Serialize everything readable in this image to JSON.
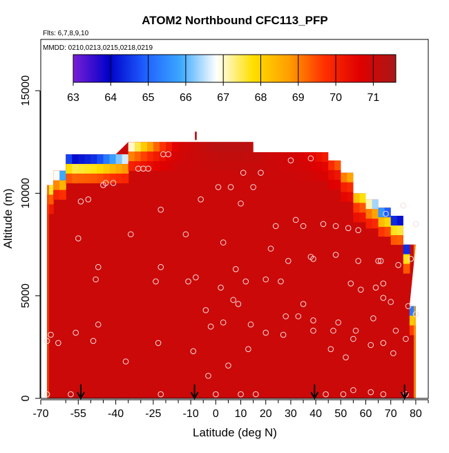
{
  "chart_data": {
    "type": "heatmap",
    "title": "ATOM2 Northbound CFC113_PFP",
    "subtitle_flights": "Flts: 6,7,8,9,10",
    "subtitle_dates": "MMDD: 0210,0213,0215,0218,0219",
    "xlabel": "Latitude (deg N)",
    "ylabel": "Altitude (m)",
    "xlim": [
      -70,
      85
    ],
    "ylim": [
      0,
      17500
    ],
    "x_ticks": [
      -70,
      -55,
      -40,
      -25,
      -10,
      0,
      10,
      20,
      30,
      40,
      50,
      60,
      70,
      80
    ],
    "x_tick_labels": [
      "-70",
      "-55",
      "-40",
      "-25",
      "-10",
      "0",
      "10",
      "20",
      "30",
      "40",
      "50",
      "60",
      "70",
      "80"
    ],
    "x_minor_ticks": [
      -60,
      -50,
      -45,
      -35,
      -30,
      -20,
      -15,
      -5,
      5,
      15,
      25,
      35,
      45,
      55,
      65,
      75,
      85
    ],
    "y_ticks": [
      0,
      5000,
      10000,
      15000
    ],
    "y_tick_labels": [
      "0",
      "5000",
      "10000",
      "15000"
    ],
    "colorbar": {
      "range": [
        63,
        71.6
      ],
      "ticks": [
        63,
        64,
        65,
        66,
        67,
        68,
        69,
        70,
        71
      ],
      "tick_labels": [
        "63",
        "64",
        "65",
        "66",
        "67",
        "68",
        "69",
        "70",
        "71"
      ],
      "colors": [
        "#7a1fd6",
        "#0000c8",
        "#1e5fff",
        "#3ca8ff",
        "#ffffff",
        "#ffe000",
        "#ffa000",
        "#ff3000",
        "#e00000",
        "#a81818"
      ]
    },
    "curtain_top": [
      {
        "x": -67.5,
        "y": 10400
      },
      {
        "x": -62.5,
        "y": 11100
      },
      {
        "x": -57.5,
        "y": 11900
      },
      {
        "x": -42.5,
        "y": 11900
      },
      {
        "x": -32.5,
        "y": 12500
      },
      {
        "x": 12.5,
        "y": 12500
      },
      {
        "x": 17.5,
        "y": 12000
      },
      {
        "x": 42.5,
        "y": 12000
      },
      {
        "x": 47.5,
        "y": 11600
      },
      {
        "x": 52.5,
        "y": 11000
      },
      {
        "x": 57.5,
        "y": 10000
      },
      {
        "x": 62.5,
        "y": 9700
      },
      {
        "x": 67.5,
        "y": 9300
      },
      {
        "x": 72.5,
        "y": 8900
      },
      {
        "x": 77.5,
        "y": 7500
      },
      {
        "x": 80.0,
        "y": 4500
      }
    ],
    "curtain_bottom": 0,
    "curtain_left_latitude": -67.5,
    "curtain_base_value": 71.0,
    "top_edge_values": [
      {
        "x": -67.5,
        "value": 68.0
      },
      {
        "x": -62.5,
        "value": 66.5
      },
      {
        "x": -57.5,
        "value": 64.0
      },
      {
        "x": -47.5,
        "value": 64.5
      },
      {
        "x": -40.0,
        "value": 66.0
      },
      {
        "x": -32.5,
        "value": 67.2
      },
      {
        "x": -25.0,
        "value": 69.0
      },
      {
        "x": -15.0,
        "value": 70.8
      },
      {
        "x": 0.0,
        "value": 71.3
      },
      {
        "x": 12.5,
        "value": 71.3
      },
      {
        "x": 20.0,
        "value": 71.0
      },
      {
        "x": 35.0,
        "value": 70.8
      },
      {
        "x": 45.0,
        "value": 70.0
      },
      {
        "x": 50.0,
        "value": 69.2
      },
      {
        "x": 55.0,
        "value": 68.5
      },
      {
        "x": 60.0,
        "value": 67.5
      },
      {
        "x": 65.0,
        "value": 66.0
      },
      {
        "x": 70.0,
        "value": 64.5
      },
      {
        "x": 75.0,
        "value": 64.0
      },
      {
        "x": 79.5,
        "value": 65.5
      }
    ],
    "left_edge_value": 69.5,
    "right_edge_value": 68.5,
    "samples": [
      {
        "x": -67.5,
        "y": 200
      },
      {
        "x": -67.5,
        "y": 2800
      },
      {
        "x": -66,
        "y": 3100
      },
      {
        "x": -63,
        "y": 2700
      },
      {
        "x": -58,
        "y": 200
      },
      {
        "x": -56,
        "y": 3200
      },
      {
        "x": -55,
        "y": 7800
      },
      {
        "x": -54,
        "y": 9600
      },
      {
        "x": -51,
        "y": 9700
      },
      {
        "x": -49,
        "y": 2800
      },
      {
        "x": -48,
        "y": 5800
      },
      {
        "x": -47,
        "y": 3600
      },
      {
        "x": -47,
        "y": 6400
      },
      {
        "x": -45,
        "y": 10400
      },
      {
        "x": -44,
        "y": 10500
      },
      {
        "x": -41,
        "y": 10500
      },
      {
        "x": -36,
        "y": 1800
      },
      {
        "x": -34,
        "y": 8000
      },
      {
        "x": -31,
        "y": 11200
      },
      {
        "x": -29,
        "y": 11200
      },
      {
        "x": -27,
        "y": 11200
      },
      {
        "x": -24,
        "y": 5700
      },
      {
        "x": -23,
        "y": 2700
      },
      {
        "x": -22,
        "y": 6400
      },
      {
        "x": -22,
        "y": 9200
      },
      {
        "x": -21,
        "y": 11900
      },
      {
        "x": -19,
        "y": 11900
      },
      {
        "x": -22,
        "y": 200
      },
      {
        "x": -12,
        "y": 8000
      },
      {
        "x": -11,
        "y": 5700
      },
      {
        "x": -9,
        "y": 2300
      },
      {
        "x": -8,
        "y": 5900
      },
      {
        "x": -6,
        "y": 9700
      },
      {
        "x": -4,
        "y": 4300
      },
      {
        "x": -3,
        "y": 1100
      },
      {
        "x": -2,
        "y": 3500
      },
      {
        "x": 0,
        "y": 200
      },
      {
        "x": 1,
        "y": 10300
      },
      {
        "x": 2,
        "y": 5400
      },
      {
        "x": 3,
        "y": 3700
      },
      {
        "x": 3,
        "y": 7600
      },
      {
        "x": 5,
        "y": 1600
      },
      {
        "x": 6,
        "y": 10300
      },
      {
        "x": 7,
        "y": 4800
      },
      {
        "x": 8,
        "y": 6300
      },
      {
        "x": 9,
        "y": 4600
      },
      {
        "x": 10,
        "y": 9500
      },
      {
        "x": 10,
        "y": 200
      },
      {
        "x": 11,
        "y": 11000
      },
      {
        "x": 12,
        "y": 5700
      },
      {
        "x": 13,
        "y": 2400
      },
      {
        "x": 14,
        "y": 3600
      },
      {
        "x": 15,
        "y": 10300
      },
      {
        "x": 16,
        "y": 200
      },
      {
        "x": 18,
        "y": 11000
      },
      {
        "x": 20,
        "y": 5800
      },
      {
        "x": 20,
        "y": 3200
      },
      {
        "x": 22,
        "y": 7300
      },
      {
        "x": 24,
        "y": 8400
      },
      {
        "x": 26,
        "y": 5700
      },
      {
        "x": 27,
        "y": 3100
      },
      {
        "x": 28,
        "y": 4000
      },
      {
        "x": 29,
        "y": 6700
      },
      {
        "x": 30,
        "y": 11600
      },
      {
        "x": 32,
        "y": 8700
      },
      {
        "x": 33,
        "y": 4000
      },
      {
        "x": 35,
        "y": 4600
      },
      {
        "x": 35,
        "y": 8400
      },
      {
        "x": 38,
        "y": 11700
      },
      {
        "x": 38,
        "y": 6900
      },
      {
        "x": 39,
        "y": 6800
      },
      {
        "x": 39,
        "y": 3800
      },
      {
        "x": 39,
        "y": 3300
      },
      {
        "x": 43,
        "y": 8500
      },
      {
        "x": 44,
        "y": 200
      },
      {
        "x": 46,
        "y": 2400
      },
      {
        "x": 47,
        "y": 3300
      },
      {
        "x": 48,
        "y": 7000
      },
      {
        "x": 48,
        "y": 8400
      },
      {
        "x": 49,
        "y": 3700
      },
      {
        "x": 51,
        "y": 200
      },
      {
        "x": 52,
        "y": 2000
      },
      {
        "x": 53,
        "y": 8300
      },
      {
        "x": 54,
        "y": 5600
      },
      {
        "x": 55,
        "y": 2900
      },
      {
        "x": 55,
        "y": 400
      },
      {
        "x": 56,
        "y": 3300
      },
      {
        "x": 57,
        "y": 6700
      },
      {
        "x": 57,
        "y": 8200
      },
      {
        "x": 58,
        "y": 5300
      },
      {
        "x": 62,
        "y": 300
      },
      {
        "x": 62,
        "y": 2600
      },
      {
        "x": 63,
        "y": 3900
      },
      {
        "x": 64,
        "y": 5400
      },
      {
        "x": 65,
        "y": 6700
      },
      {
        "x": 66,
        "y": 6700
      },
      {
        "x": 67,
        "y": 4900
      },
      {
        "x": 67,
        "y": 5600
      },
      {
        "x": 67,
        "y": 2700
      },
      {
        "x": 67,
        "y": 200
      },
      {
        "x": 68,
        "y": 9000
      },
      {
        "x": 70,
        "y": 4700
      },
      {
        "x": 71,
        "y": 2200
      },
      {
        "x": 72,
        "y": 3300
      },
      {
        "x": 73,
        "y": 6500
      },
      {
        "x": 75,
        "y": 9400
      },
      {
        "x": 76,
        "y": 2900
      },
      {
        "x": 77,
        "y": 4500
      },
      {
        "x": 78,
        "y": 6800
      },
      {
        "x": 80,
        "y": 8500
      },
      {
        "x": 80,
        "y": 4100
      },
      {
        "x": 76,
        "y": 200
      }
    ],
    "profile_arrows": [
      -54,
      -8.5,
      39.5,
      75.5
    ],
    "marker_top": {
      "x": -8,
      "y": 12800
    }
  }
}
